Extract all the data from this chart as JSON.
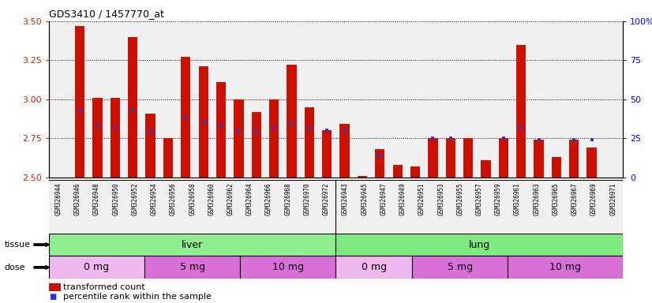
{
  "title": "GDS3410 / 1457770_at",
  "samples": [
    "GSM326944",
    "GSM326946",
    "GSM326948",
    "GSM326950",
    "GSM326952",
    "GSM326954",
    "GSM326956",
    "GSM326958",
    "GSM326960",
    "GSM326962",
    "GSM326964",
    "GSM326966",
    "GSM326968",
    "GSM326970",
    "GSM326972",
    "GSM326943",
    "GSM326945",
    "GSM326947",
    "GSM326949",
    "GSM326951",
    "GSM326953",
    "GSM326955",
    "GSM326957",
    "GSM326959",
    "GSM326961",
    "GSM326963",
    "GSM326965",
    "GSM326967",
    "GSM326969",
    "GSM326971"
  ],
  "bar_values": [
    3.47,
    3.01,
    3.01,
    3.4,
    2.91,
    2.75,
    3.27,
    3.21,
    3.11,
    3.0,
    2.92,
    3.0,
    3.22,
    2.95,
    2.8,
    2.84,
    2.51,
    2.68,
    2.58,
    2.57,
    2.75,
    2.75,
    2.75,
    2.61,
    2.75,
    3.35,
    2.74,
    2.63,
    2.74,
    2.69
  ],
  "percentile_values": [
    2.93,
    2.83,
    2.82,
    2.93,
    2.79,
    null,
    2.88,
    2.85,
    2.83,
    2.79,
    2.79,
    2.82,
    2.84,
    2.81,
    2.8,
    2.79,
    null,
    2.64,
    null,
    null,
    2.75,
    2.75,
    null,
    null,
    2.75,
    2.82,
    2.74,
    null,
    2.74,
    2.74
  ],
  "ylim_left": [
    2.5,
    3.5
  ],
  "ylim_right": [
    0,
    100
  ],
  "yticks_left": [
    2.5,
    2.75,
    3.0,
    3.25,
    3.5
  ],
  "yticks_right": [
    0,
    25,
    50,
    75,
    100
  ],
  "bar_color": "#CC1100",
  "dot_color": "#3333CC",
  "plot_bg_color": "#F0F0F0",
  "bar_bottom": 2.5,
  "tissue_liver_color": "#90EE90",
  "tissue_lung_color": "#7FE87F",
  "dose_light_color": "#F0B8F0",
  "dose_dark_color": "#DA6FD8",
  "tissue_liver_label": "liver",
  "tissue_lung_label": "lung",
  "tissue_row_label": "tissue",
  "dose_row_label": "dose",
  "legend_label_bar": "transformed count",
  "legend_label_dot": "percentile rank within the sample"
}
